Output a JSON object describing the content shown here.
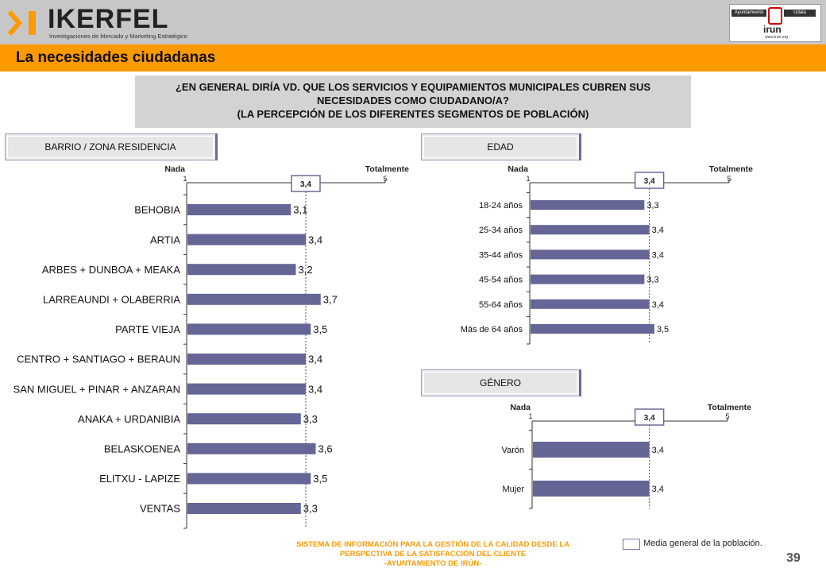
{
  "header": {
    "brand": "IKERFEL",
    "tagline": "Investigaciones de Mercado y Marketing Estratégico",
    "client_logo_top_left": "Ayuntamiento",
    "client_logo_top_right": "Udala",
    "client_logo_name": "irun",
    "client_logo_url": "www.irun.org"
  },
  "title": "La necesidades ciudadanas",
  "question": {
    "line1": "¿EN GENERAL DIRÍA VD. QUE LOS SERVICIOS Y EQUIPAMIENTOS MUNICIPALES CUBREN SUS",
    "line2": "NECESIDADES COMO CIUDADANO/A?",
    "line3": "(LA PERCEPCIÓN DE LOS DIFERENTES SEGMENTOS DE POBLACIÓN)"
  },
  "sections": {
    "barrio": "BARRIO / ZONA RESIDENCIA",
    "edad": "EDAD",
    "genero": "GÉNERO"
  },
  "scale": {
    "low_label": "Nada",
    "high_label": "Totalmente",
    "min_tick": "1",
    "max_tick": "5"
  },
  "footer": {
    "line1": "SISTEMA DE INFORMACIÓN PARA LA GESTIÓN DE LA CALIDAD DESDE LA",
    "line2": "PERSPECTIVA DE LA SATISFACCIÓN DEL CLIENTE",
    "line3": "-AYUNTAMIENTO DE IRÚN-"
  },
  "legend": {
    "label": "Media general de la población."
  },
  "page_number": "39",
  "colors": {
    "bar": "#656596",
    "accent": "#ff9900",
    "header_bg": "#c7c7c7",
    "box_border": "#6a6a9a"
  },
  "chart_data": [
    {
      "type": "bar",
      "orientation": "horizontal",
      "panel": "barrio",
      "categories": [
        "BEHOBIA",
        "ARTIA",
        "ARBES + DUNBOA + MEAKA",
        "LARREAUNDI + OLABERRIA",
        "PARTE VIEJA",
        "CENTRO + SANTIAGO + BERAUN",
        "SAN MIGUEL + PINAR + ANZARAN",
        "ANAKA + URDANIBIA",
        "BELASKOENEA",
        "ELITXU - LAPIZE",
        "VENTAS"
      ],
      "values": [
        3.1,
        3.4,
        3.2,
        3.7,
        3.5,
        3.4,
        3.4,
        3.3,
        3.6,
        3.5,
        3.3
      ],
      "labels": [
        "3,1",
        "3,4",
        "3,2",
        "3,7",
        "3,5",
        "3,4",
        "3,4",
        "3,3",
        "3,6",
        "3,5",
        "3,3"
      ],
      "xlim": [
        1,
        5
      ],
      "reference": {
        "value": 3.4,
        "label": "3,4"
      }
    },
    {
      "type": "bar",
      "orientation": "horizontal",
      "panel": "edad",
      "categories": [
        "18-24 años",
        "25-34 años",
        "35-44 años",
        "45-54 años",
        "55-64 años",
        "Más de 64 años"
      ],
      "values": [
        3.3,
        3.4,
        3.4,
        3.3,
        3.4,
        3.5
      ],
      "labels": [
        "3,3",
        "3,4",
        "3,4",
        "3,3",
        "3,4",
        "3,5"
      ],
      "xlim": [
        1,
        5
      ],
      "reference": {
        "value": 3.4,
        "label": "3,4"
      }
    },
    {
      "type": "bar",
      "orientation": "horizontal",
      "panel": "genero",
      "categories": [
        "Varón",
        "Mujer"
      ],
      "values": [
        3.4,
        3.4
      ],
      "labels": [
        "3,4",
        "3,4"
      ],
      "xlim": [
        1,
        5
      ],
      "reference": {
        "value": 3.4,
        "label": "3,4"
      }
    }
  ]
}
